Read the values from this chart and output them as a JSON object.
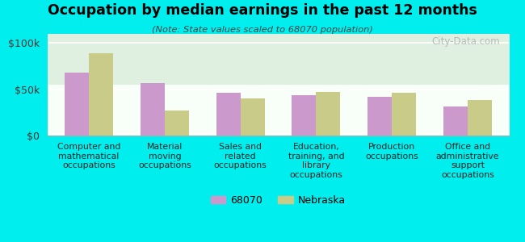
{
  "title": "Occupation by median earnings in the past 12 months",
  "subtitle": "(Note: State values scaled to 68070 population)",
  "categories": [
    "Computer and\nmathematical\noccupations",
    "Material\nmoving\noccupations",
    "Sales and\nrelated\noccupations",
    "Education,\ntraining, and\nlibrary\noccupations",
    "Production\noccupations",
    "Office and\nadministrative\nsupport\noccupations"
  ],
  "values_68070": [
    68000,
    57000,
    46000,
    44000,
    42000,
    31000
  ],
  "values_nebraska": [
    89000,
    27000,
    40000,
    47000,
    46000,
    38000
  ],
  "color_68070": "#cc99cc",
  "color_nebraska": "#c8cc88",
  "background_color": "#00eeee",
  "ylim": [
    0,
    110000
  ],
  "yticks": [
    0,
    50000,
    100000
  ],
  "ytick_labels": [
    "$0",
    "$50k",
    "$100k"
  ],
  "legend_label_68070": "68070",
  "legend_label_nebraska": "Nebraska",
  "watermark": "City-Data.com"
}
